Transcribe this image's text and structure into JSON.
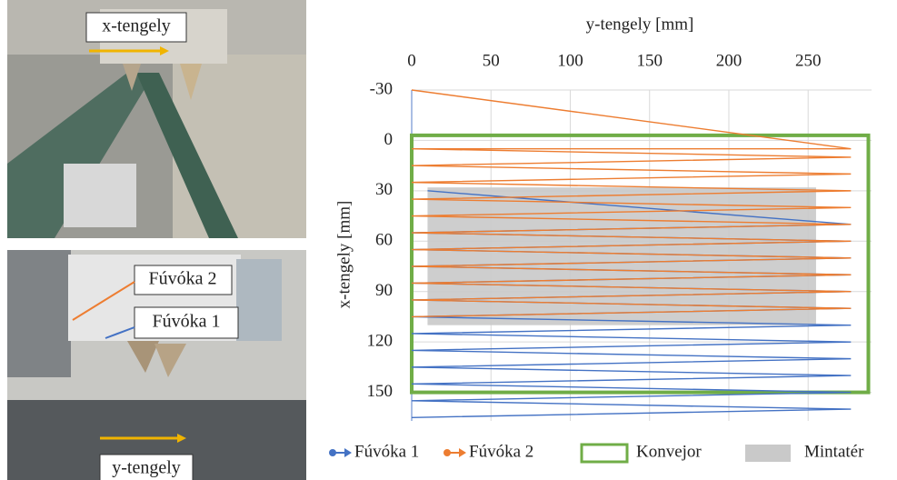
{
  "photo_labels": [
    "x-tengely",
    "Fúvóka 2",
    "Fúvóka 1",
    "y-tengely"
  ],
  "chart_data": {
    "type": "line",
    "x_title": "y-tengely [mm]",
    "y_title": "x-tengely [mm]",
    "xlim": [
      0,
      290
    ],
    "xticks": [
      0,
      50,
      100,
      150,
      200,
      250
    ],
    "ylim": [
      -30,
      167
    ],
    "yticks": [
      -30,
      0,
      30,
      60,
      90,
      120,
      150
    ],
    "y_inverted": true,
    "x_axis_top": true,
    "grid": true,
    "series": [
      {
        "name": "Fúvóka 1",
        "color": "#4472c4",
        "x": [
          10,
          277,
          0,
          277,
          0,
          277,
          0,
          277,
          0,
          277,
          0,
          277,
          0,
          277,
          0,
          277,
          0,
          277,
          0,
          277,
          0,
          277,
          0,
          277,
          0
        ],
        "values": [
          30,
          50,
          55,
          60,
          65,
          70,
          75,
          80,
          85,
          90,
          95,
          100,
          105,
          110,
          115,
          120,
          125,
          130,
          135,
          140,
          145,
          150,
          155,
          160,
          165
        ]
      },
      {
        "name": "Fúvóka 2",
        "color": "#ed7d31",
        "x": [
          0,
          277,
          0,
          277,
          0,
          277,
          0,
          277,
          0,
          277,
          0,
          277,
          0,
          277,
          0,
          277,
          0,
          277,
          0,
          277,
          0,
          277,
          0
        ],
        "values": [
          -30,
          5,
          5,
          10,
          15,
          20,
          25,
          30,
          35,
          40,
          45,
          50,
          55,
          60,
          65,
          70,
          75,
          80,
          85,
          90,
          95,
          100,
          105
        ]
      }
    ],
    "regions": [
      {
        "name": "Konvejor",
        "color": "#70ad47",
        "fill": false,
        "x": [
          0,
          288
        ],
        "y": [
          -3,
          150
        ]
      },
      {
        "name": "Mintatér",
        "color": "#c9c9c9",
        "fill": true,
        "x": [
          10,
          255
        ],
        "y": [
          28,
          110
        ]
      }
    ]
  }
}
